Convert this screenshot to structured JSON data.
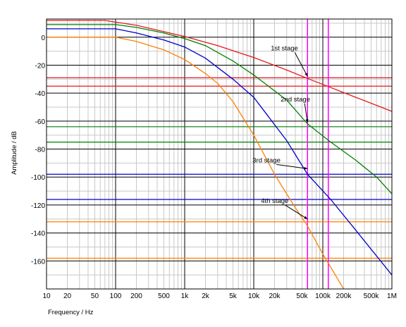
{
  "chart_data": {
    "type": "line",
    "xlabel": "Frequency / Hz",
    "ylabel": "Amplitude / dB",
    "xscale": "log",
    "xlim": [
      10,
      1000000
    ],
    "ylim": [
      -180,
      13
    ],
    "grid": true,
    "x_ticks": [
      {
        "v": 10,
        "label": "10"
      },
      {
        "v": 20,
        "label": "20"
      },
      {
        "v": 50,
        "label": "50"
      },
      {
        "v": 100,
        "label": "100"
      },
      {
        "v": 200,
        "label": "200"
      },
      {
        "v": 500,
        "label": "500"
      },
      {
        "v": 1000,
        "label": "1k"
      },
      {
        "v": 2000,
        "label": "2k"
      },
      {
        "v": 5000,
        "label": "5k"
      },
      {
        "v": 10000,
        "label": "10k"
      },
      {
        "v": 20000,
        "label": "20k"
      },
      {
        "v": 50000,
        "label": "50k"
      },
      {
        "v": 100000,
        "label": "100k"
      },
      {
        "v": 200000,
        "label": "200k"
      },
      {
        "v": 500000,
        "label": "500k"
      },
      {
        "v": 1000000,
        "label": "1M"
      }
    ],
    "y_ticks": [
      0,
      -20,
      -40,
      -60,
      -80,
      -100,
      -120,
      -140,
      -160
    ],
    "series": [
      {
        "name": "1st stage",
        "color": "#e41a1c",
        "points": [
          [
            10,
            12
          ],
          [
            70,
            12
          ],
          [
            200,
            8.5
          ],
          [
            500,
            4
          ],
          [
            1000,
            0.5
          ],
          [
            3000,
            -6
          ],
          [
            10000,
            -14.5
          ],
          [
            30000,
            -23.5
          ],
          [
            60000,
            -29.5
          ],
          [
            130000,
            -36
          ],
          [
            300000,
            -43
          ],
          [
            1000000,
            -53
          ]
        ]
      },
      {
        "name": "2nd stage",
        "color": "#008000",
        "points": [
          [
            10,
            9
          ],
          [
            100,
            9
          ],
          [
            200,
            7
          ],
          [
            500,
            3
          ],
          [
            1000,
            -1
          ],
          [
            2000,
            -6
          ],
          [
            5000,
            -17
          ],
          [
            10000,
            -27
          ],
          [
            30000,
            -45
          ],
          [
            60000,
            -62
          ],
          [
            130000,
            -75
          ],
          [
            300000,
            -88
          ],
          [
            600000,
            -100
          ],
          [
            1000000,
            -112
          ]
        ]
      },
      {
        "name": "3rd stage",
        "color": "#0000cc",
        "points": [
          [
            10,
            6
          ],
          [
            100,
            6
          ],
          [
            200,
            3
          ],
          [
            500,
            -2
          ],
          [
            1000,
            -7
          ],
          [
            2000,
            -15
          ],
          [
            5000,
            -30
          ],
          [
            10000,
            -43
          ],
          [
            30000,
            -74
          ],
          [
            60000,
            -98
          ],
          [
            130000,
            -116
          ],
          [
            300000,
            -138
          ],
          [
            1000000,
            -170
          ]
        ]
      },
      {
        "name": "4th stage",
        "color": "#ff8000",
        "points": [
          [
            10,
            0
          ],
          [
            100,
            0
          ],
          [
            200,
            -3
          ],
          [
            500,
            -9
          ],
          [
            1000,
            -16
          ],
          [
            2000,
            -26
          ],
          [
            3000,
            -33
          ],
          [
            5000,
            -46
          ],
          [
            10000,
            -70
          ],
          [
            20000,
            -98
          ],
          [
            40000,
            -122
          ],
          [
            60000,
            -135
          ],
          [
            100000,
            -155
          ],
          [
            200000,
            -180
          ]
        ]
      }
    ],
    "h_lines": [
      {
        "y": -29,
        "color": "#e41a1c"
      },
      {
        "y": -35,
        "color": "#e41a1c"
      },
      {
        "y": -64,
        "color": "#008000"
      },
      {
        "y": -75,
        "color": "#008000"
      },
      {
        "y": -98,
        "color": "#0000cc"
      },
      {
        "y": -116,
        "color": "#0000cc"
      },
      {
        "y": -132,
        "color": "#ff8000"
      },
      {
        "y": -158,
        "color": "#ff8000"
      }
    ],
    "v_lines": [
      {
        "x": 60000,
        "color": "#ff00ff"
      },
      {
        "x": 120000,
        "color": "#ff00ff"
      }
    ],
    "annotations": [
      {
        "text": "1st stage",
        "x": 60000,
        "y": -28,
        "series": 0
      },
      {
        "text": "2nd stage",
        "x": 60000,
        "y": -61,
        "series": 1
      },
      {
        "text": "3rd stage",
        "x": 60000,
        "y": -94,
        "series": 2
      },
      {
        "text": "4th stage",
        "x": 60000,
        "y": -130,
        "series": 3
      }
    ]
  }
}
